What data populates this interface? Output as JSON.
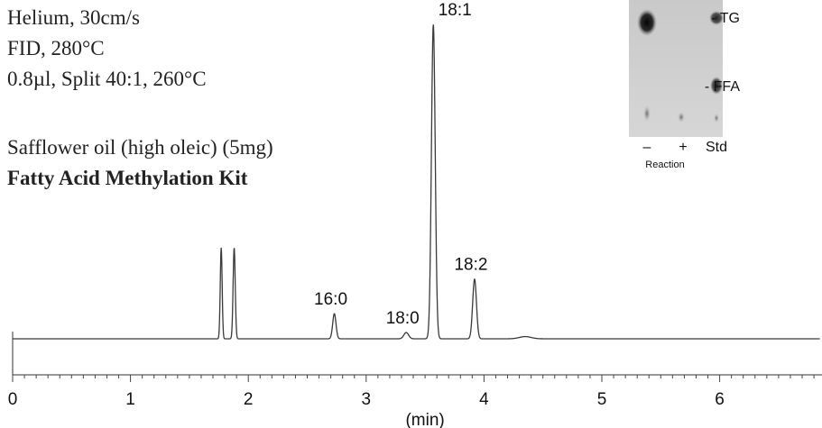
{
  "conditions": {
    "carrier": "Helium, 30cm/s",
    "detector": "FID, 280°C",
    "injection": "0.8µl, Split 40:1, 260°C",
    "sample": "Safflower oil (high oleic)  (5mg)",
    "kit": "Fatty Acid Methylation Kit"
  },
  "chart_data": {
    "type": "line",
    "xlabel": "(min)",
    "ylabel": "",
    "xlim": [
      0,
      6.85
    ],
    "ylim": [
      0,
      100
    ],
    "x_ticks": [
      0,
      1,
      2,
      3,
      4,
      5,
      6
    ],
    "x_minor_step": 0.1,
    "baseline": 3,
    "grid": false,
    "series": [
      {
        "peaks": [
          {
            "rt": 1.77,
            "height": 29,
            "width": 0.008,
            "label": ""
          },
          {
            "rt": 1.88,
            "height": 29,
            "width": 0.009,
            "label": ""
          },
          {
            "rt": 2.73,
            "height": 8,
            "width": 0.014,
            "label": "16:0"
          },
          {
            "rt": 3.34,
            "height": 2,
            "width": 0.02,
            "label": "18:0"
          },
          {
            "rt": 3.57,
            "height": 100,
            "width": 0.016,
            "label": "18:1"
          },
          {
            "rt": 3.92,
            "height": 19,
            "width": 0.016,
            "label": "18:2"
          },
          {
            "rt": 4.35,
            "height": 0.7,
            "width": 0.05,
            "label": ""
          }
        ]
      }
    ]
  },
  "tlc": {
    "lanes": [
      "–",
      "+",
      "Std"
    ],
    "spots": [
      "TG",
      "FFA"
    ],
    "lane_caption": "Reaction",
    "spot_prefix": "- "
  }
}
